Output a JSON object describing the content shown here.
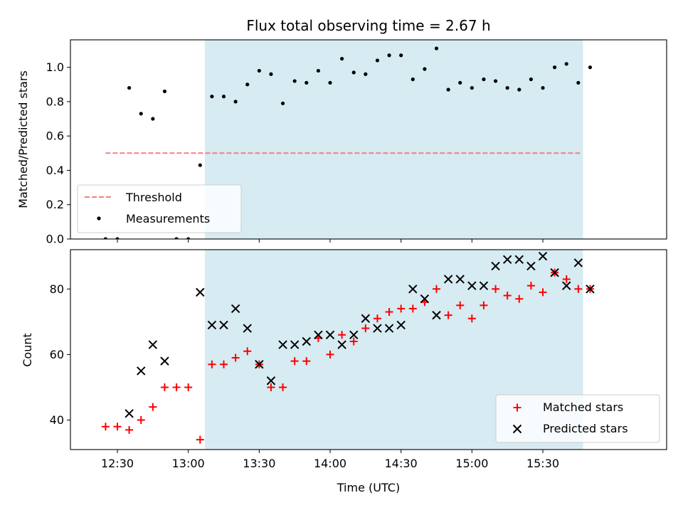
{
  "chart_data": [
    {
      "type": "scatter",
      "title": "Flux total observing time = 2.67 h",
      "xlabel": "",
      "ylabel": "Matched/Predicted stars",
      "ylim": [
        0,
        1.16
      ],
      "yticks": [
        "0.0",
        "0.2",
        "0.4",
        "0.6",
        "0.8",
        "1.0"
      ],
      "highlight_range": [
        "13:07",
        "15:47"
      ],
      "highlight_color": "#add8e6",
      "threshold": {
        "name": "Threshold",
        "y": 0.5,
        "x_range": [
          "12:25",
          "15:46"
        ],
        "color": "#f08080"
      },
      "legend": {
        "position": "lower-left",
        "entries": [
          "Threshold",
          "Measurements"
        ]
      },
      "series": [
        {
          "name": "Measurements",
          "marker": "dot",
          "color": "#000000",
          "points": [
            [
              "12:25",
              0.0
            ],
            [
              "12:30",
              0.0
            ],
            [
              "12:35",
              0.88
            ],
            [
              "12:40",
              0.73
            ],
            [
              "12:45",
              0.7
            ],
            [
              "12:50",
              0.86
            ],
            [
              "12:55",
              0.0
            ],
            [
              "13:00",
              0.0
            ],
            [
              "13:05",
              0.43
            ],
            [
              "13:10",
              0.83
            ],
            [
              "13:15",
              0.83
            ],
            [
              "13:20",
              0.8
            ],
            [
              "13:25",
              0.9
            ],
            [
              "13:30",
              0.98
            ],
            [
              "13:35",
              0.96
            ],
            [
              "13:40",
              0.79
            ],
            [
              "13:45",
              0.92
            ],
            [
              "13:50",
              0.91
            ],
            [
              "13:55",
              0.98
            ],
            [
              "14:00",
              0.91
            ],
            [
              "14:05",
              1.05
            ],
            [
              "14:10",
              0.97
            ],
            [
              "14:15",
              0.96
            ],
            [
              "14:20",
              1.04
            ],
            [
              "14:25",
              1.07
            ],
            [
              "14:30",
              1.07
            ],
            [
              "14:35",
              0.93
            ],
            [
              "14:40",
              0.99
            ],
            [
              "14:45",
              1.11
            ],
            [
              "14:50",
              0.87
            ],
            [
              "14:55",
              0.91
            ],
            [
              "15:00",
              0.88
            ],
            [
              "15:05",
              0.93
            ],
            [
              "15:10",
              0.92
            ],
            [
              "15:15",
              0.88
            ],
            [
              "15:20",
              0.87
            ],
            [
              "15:25",
              0.93
            ],
            [
              "15:30",
              0.88
            ],
            [
              "15:35",
              1.0
            ],
            [
              "15:40",
              1.02
            ],
            [
              "15:45",
              0.91
            ],
            [
              "15:50",
              1.0
            ]
          ]
        }
      ]
    },
    {
      "type": "scatter",
      "title": "",
      "xlabel": "Time (UTC)",
      "ylabel": "Count",
      "ylim": [
        31,
        92
      ],
      "yticks": [
        "40",
        "60",
        "80"
      ],
      "xticks": [
        "12:30",
        "13:00",
        "13:30",
        "14:00",
        "14:30",
        "15:00",
        "15:30"
      ],
      "highlight_range": [
        "13:07",
        "15:47"
      ],
      "highlight_color": "#add8e6",
      "legend": {
        "position": "lower-right",
        "entries": [
          "Matched stars",
          "Predicted stars"
        ]
      },
      "series": [
        {
          "name": "Matched stars",
          "marker": "plus",
          "color": "#ff0000",
          "points": [
            [
              "12:25",
              38
            ],
            [
              "12:30",
              38
            ],
            [
              "12:35",
              37
            ],
            [
              "12:40",
              40
            ],
            [
              "12:45",
              44
            ],
            [
              "12:50",
              50
            ],
            [
              "12:55",
              50
            ],
            [
              "13:00",
              50
            ],
            [
              "13:05",
              34
            ],
            [
              "13:10",
              57
            ],
            [
              "13:15",
              57
            ],
            [
              "13:20",
              59
            ],
            [
              "13:25",
              61
            ],
            [
              "13:30",
              57
            ],
            [
              "13:35",
              50
            ],
            [
              "13:40",
              50
            ],
            [
              "13:45",
              58
            ],
            [
              "13:50",
              58
            ],
            [
              "13:55",
              65
            ],
            [
              "14:00",
              60
            ],
            [
              "14:05",
              66
            ],
            [
              "14:10",
              64
            ],
            [
              "14:15",
              68
            ],
            [
              "14:20",
              71
            ],
            [
              "14:25",
              73
            ],
            [
              "14:30",
              74
            ],
            [
              "14:35",
              74
            ],
            [
              "14:40",
              76
            ],
            [
              "14:45",
              80
            ],
            [
              "14:50",
              72
            ],
            [
              "14:55",
              75
            ],
            [
              "15:00",
              71
            ],
            [
              "15:05",
              75
            ],
            [
              "15:10",
              80
            ],
            [
              "15:15",
              78
            ],
            [
              "15:20",
              77
            ],
            [
              "15:25",
              81
            ],
            [
              "15:30",
              79
            ],
            [
              "15:35",
              85
            ],
            [
              "15:40",
              83
            ],
            [
              "15:45",
              80
            ],
            [
              "15:50",
              80
            ]
          ]
        },
        {
          "name": "Predicted stars",
          "marker": "x",
          "color": "#000000",
          "points": [
            [
              "12:35",
              42
            ],
            [
              "12:40",
              55
            ],
            [
              "12:45",
              63
            ],
            [
              "12:50",
              58
            ],
            [
              "13:05",
              79
            ],
            [
              "13:10",
              69
            ],
            [
              "13:15",
              69
            ],
            [
              "13:20",
              74
            ],
            [
              "13:25",
              68
            ],
            [
              "13:30",
              57
            ],
            [
              "13:35",
              52
            ],
            [
              "13:40",
              63
            ],
            [
              "13:45",
              63
            ],
            [
              "13:50",
              64
            ],
            [
              "13:55",
              66
            ],
            [
              "14:00",
              66
            ],
            [
              "14:05",
              63
            ],
            [
              "14:10",
              66
            ],
            [
              "14:15",
              71
            ],
            [
              "14:20",
              68
            ],
            [
              "14:25",
              68
            ],
            [
              "14:30",
              69
            ],
            [
              "14:35",
              80
            ],
            [
              "14:40",
              77
            ],
            [
              "14:45",
              72
            ],
            [
              "14:50",
              83
            ],
            [
              "14:55",
              83
            ],
            [
              "15:00",
              81
            ],
            [
              "15:05",
              81
            ],
            [
              "15:10",
              87
            ],
            [
              "15:15",
              89
            ],
            [
              "15:20",
              89
            ],
            [
              "15:25",
              87
            ],
            [
              "15:30",
              90
            ],
            [
              "15:35",
              85
            ],
            [
              "15:40",
              81
            ],
            [
              "15:45",
              88
            ],
            [
              "15:50",
              80
            ]
          ]
        }
      ]
    }
  ]
}
